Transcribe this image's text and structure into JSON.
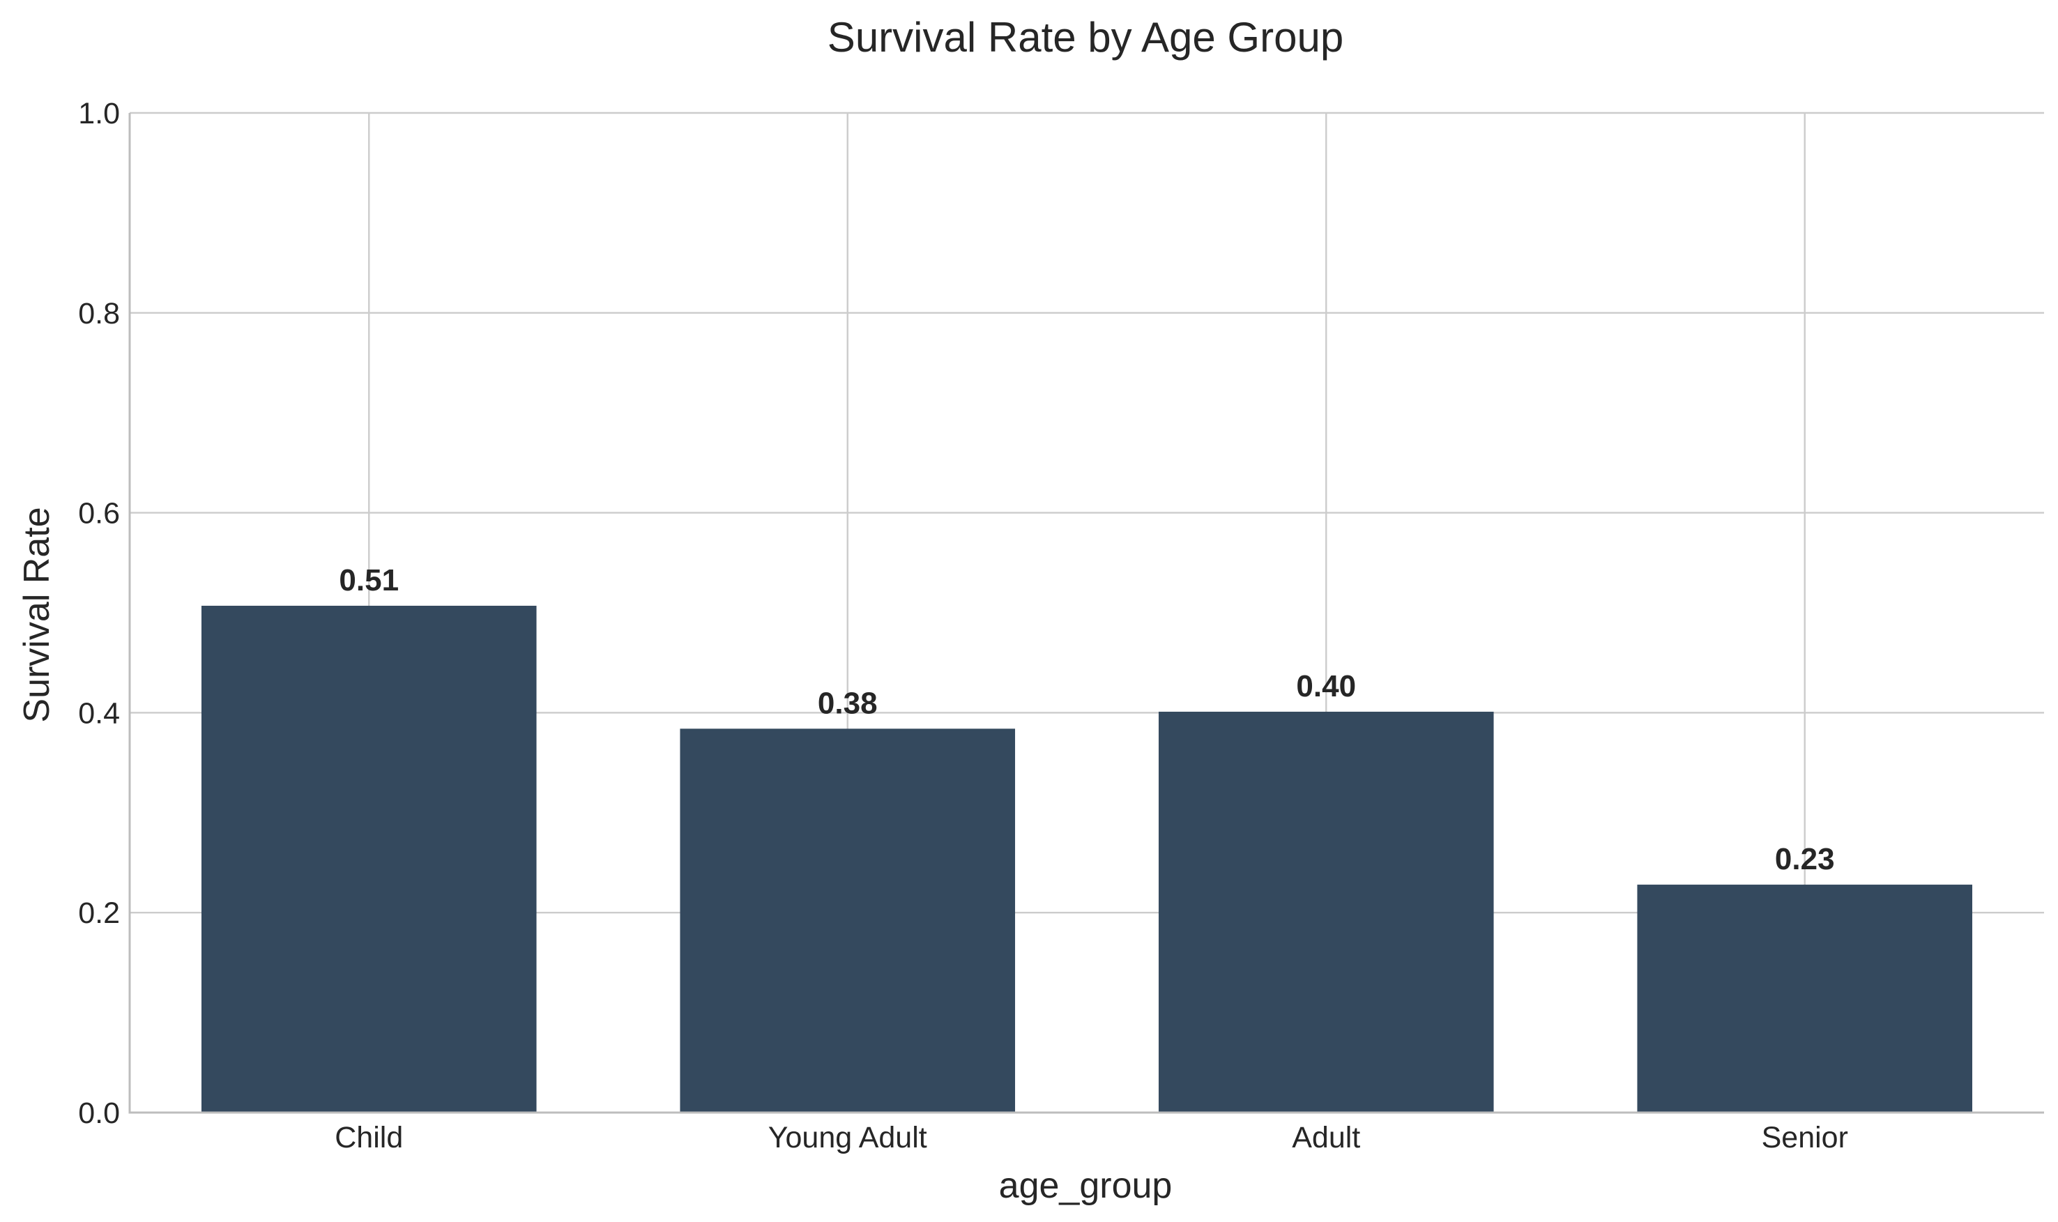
{
  "chart_data": {
    "type": "bar",
    "title": "Survival Rate by Age Group",
    "xlabel": "age_group",
    "ylabel": "Survival Rate",
    "categories": [
      "Child",
      "Young Adult",
      "Adult",
      "Senior"
    ],
    "values": [
      0.507,
      0.384,
      0.401,
      0.228
    ],
    "value_labels": [
      "0.51",
      "0.38",
      "0.40",
      "0.23"
    ],
    "ylim": [
      0,
      1.0
    ],
    "yticks": [
      "0.0",
      "0.2",
      "0.4",
      "0.6",
      "0.8",
      "1.0"
    ],
    "grid": true,
    "colors": {
      "bar": "#34495e"
    }
  }
}
